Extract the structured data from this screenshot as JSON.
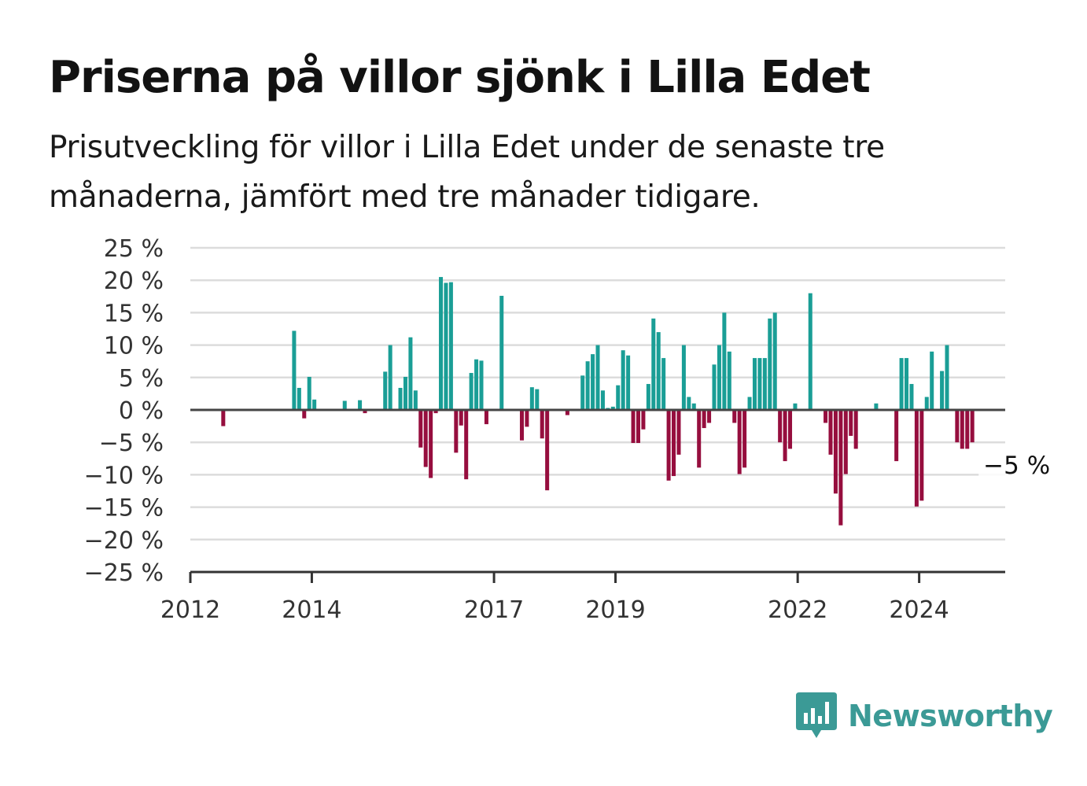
{
  "header": {
    "title": "Priserna på villor sjönk i Lilla Edet",
    "subtitle": "Prisutveckling för villor i Lilla Edet under de senaste tre månaderna, jämfört med tre månader tidigare."
  },
  "brand": {
    "name": "Newsworthy",
    "icon": "bar-chart-speech-bubble-icon",
    "color": "#3b9a96"
  },
  "colors": {
    "positive": "#1a9e96",
    "negative": "#960e3e",
    "grid": "#dcdcdc",
    "axis": "#333333"
  },
  "chart_data": {
    "type": "bar",
    "title": "Priserna på villor sjönk i Lilla Edet",
    "subtitle": "Prisutveckling för villor i Lilla Edet under de senaste tre månaderna, jämfört med tre månader tidigare.",
    "ylim": [
      -25,
      25
    ],
    "y_ticks": [
      25,
      20,
      15,
      10,
      5,
      0,
      -5,
      -10,
      -15,
      -20,
      -25
    ],
    "y_tick_labels": [
      "25 %",
      "20 %",
      "15 %",
      "10 %",
      "5 %",
      "0 %",
      "−5 %",
      "−10 %",
      "−15 %",
      "−20 %",
      "−25 %"
    ],
    "xlim": [
      "2012-01",
      "2025-06"
    ],
    "x_ticks": [
      "2012-01",
      "2014-01",
      "2017-01",
      "2019-01",
      "2022-01",
      "2024-01"
    ],
    "x_tick_labels": [
      "2012",
      "2014",
      "2017",
      "2019",
      "2022",
      "2024"
    ],
    "grid": true,
    "annotation": {
      "label": "−5 %",
      "date": "2024-11",
      "value": -5
    },
    "series": [
      {
        "x": "2012-07",
        "value": -2.5
      },
      {
        "x": "2013-09",
        "value": 12.2
      },
      {
        "x": "2013-10",
        "value": 3.4
      },
      {
        "x": "2013-11",
        "value": -1.3
      },
      {
        "x": "2013-12",
        "value": 5.1
      },
      {
        "x": "2014-01",
        "value": 1.6
      },
      {
        "x": "2014-07",
        "value": 1.4
      },
      {
        "x": "2014-10",
        "value": 1.5
      },
      {
        "x": "2014-11",
        "value": -0.5
      },
      {
        "x": "2015-03",
        "value": 5.9
      },
      {
        "x": "2015-04",
        "value": 10.0
      },
      {
        "x": "2015-06",
        "value": 3.4
      },
      {
        "x": "2015-07",
        "value": 5.1
      },
      {
        "x": "2015-08",
        "value": 11.2
      },
      {
        "x": "2015-09",
        "value": 3.0
      },
      {
        "x": "2015-10",
        "value": -5.8
      },
      {
        "x": "2015-11",
        "value": -8.8
      },
      {
        "x": "2015-12",
        "value": -10.5
      },
      {
        "x": "2016-01",
        "value": -0.5
      },
      {
        "x": "2016-02",
        "value": 20.5
      },
      {
        "x": "2016-03",
        "value": 19.6
      },
      {
        "x": "2016-04",
        "value": 19.7
      },
      {
        "x": "2016-05",
        "value": -6.6
      },
      {
        "x": "2016-06",
        "value": -2.4
      },
      {
        "x": "2016-07",
        "value": -10.7
      },
      {
        "x": "2016-08",
        "value": 5.7
      },
      {
        "x": "2016-09",
        "value": 7.8
      },
      {
        "x": "2016-10",
        "value": 7.6
      },
      {
        "x": "2016-11",
        "value": -2.2
      },
      {
        "x": "2017-02",
        "value": 17.6
      },
      {
        "x": "2017-06",
        "value": -4.7
      },
      {
        "x": "2017-07",
        "value": -2.6
      },
      {
        "x": "2017-08",
        "value": 3.5
      },
      {
        "x": "2017-09",
        "value": 3.2
      },
      {
        "x": "2017-10",
        "value": -4.4
      },
      {
        "x": "2017-11",
        "value": -12.4
      },
      {
        "x": "2018-03",
        "value": -0.8
      },
      {
        "x": "2018-06",
        "value": 5.3
      },
      {
        "x": "2018-07",
        "value": 7.5
      },
      {
        "x": "2018-08",
        "value": 8.6
      },
      {
        "x": "2018-09",
        "value": 10.0
      },
      {
        "x": "2018-10",
        "value": 3.0
      },
      {
        "x": "2018-11",
        "value": 0.3
      },
      {
        "x": "2018-12",
        "value": 0.5
      },
      {
        "x": "2019-01",
        "value": 3.8
      },
      {
        "x": "2019-02",
        "value": 9.2
      },
      {
        "x": "2019-03",
        "value": 8.4
      },
      {
        "x": "2019-04",
        "value": -5.1
      },
      {
        "x": "2019-05",
        "value": -5.1
      },
      {
        "x": "2019-06",
        "value": -3.0
      },
      {
        "x": "2019-07",
        "value": 4.0
      },
      {
        "x": "2019-08",
        "value": 14.1
      },
      {
        "x": "2019-09",
        "value": 12.0
      },
      {
        "x": "2019-10",
        "value": 8.0
      },
      {
        "x": "2019-11",
        "value": -10.9
      },
      {
        "x": "2019-12",
        "value": -10.2
      },
      {
        "x": "2020-01",
        "value": -6.9
      },
      {
        "x": "2020-02",
        "value": 10.0
      },
      {
        "x": "2020-03",
        "value": 2.0
      },
      {
        "x": "2020-04",
        "value": 1.0
      },
      {
        "x": "2020-05",
        "value": -8.9
      },
      {
        "x": "2020-06",
        "value": -2.8
      },
      {
        "x": "2020-07",
        "value": -2.0
      },
      {
        "x": "2020-08",
        "value": 7.0
      },
      {
        "x": "2020-09",
        "value": 10.0
      },
      {
        "x": "2020-10",
        "value": 15.0
      },
      {
        "x": "2020-11",
        "value": 9.0
      },
      {
        "x": "2020-12",
        "value": -2.0
      },
      {
        "x": "2021-01",
        "value": -9.9
      },
      {
        "x": "2021-02",
        "value": -8.9
      },
      {
        "x": "2021-03",
        "value": 2.0
      },
      {
        "x": "2021-04",
        "value": 8.0
      },
      {
        "x": "2021-05",
        "value": 8.0
      },
      {
        "x": "2021-06",
        "value": 8.0
      },
      {
        "x": "2021-07",
        "value": 14.1
      },
      {
        "x": "2021-08",
        "value": 15.0
      },
      {
        "x": "2021-09",
        "value": -5.0
      },
      {
        "x": "2021-10",
        "value": -7.9
      },
      {
        "x": "2021-11",
        "value": -6.0
      },
      {
        "x": "2021-12",
        "value": 1.0
      },
      {
        "x": "2022-03",
        "value": 18.0
      },
      {
        "x": "2022-06",
        "value": -2.0
      },
      {
        "x": "2022-07",
        "value": -6.9
      },
      {
        "x": "2022-08",
        "value": -12.9
      },
      {
        "x": "2022-09",
        "value": -17.8
      },
      {
        "x": "2022-10",
        "value": -9.9
      },
      {
        "x": "2022-11",
        "value": -4.0
      },
      {
        "x": "2022-12",
        "value": -6.0
      },
      {
        "x": "2023-04",
        "value": 1.0
      },
      {
        "x": "2023-08",
        "value": -7.9
      },
      {
        "x": "2023-09",
        "value": 8.0
      },
      {
        "x": "2023-10",
        "value": 8.0
      },
      {
        "x": "2023-11",
        "value": 4.0
      },
      {
        "x": "2023-12",
        "value": -14.9
      },
      {
        "x": "2024-01",
        "value": -14.0
      },
      {
        "x": "2024-02",
        "value": 2.0
      },
      {
        "x": "2024-03",
        "value": 9.0
      },
      {
        "x": "2024-05",
        "value": 6.0
      },
      {
        "x": "2024-06",
        "value": 10.0
      },
      {
        "x": "2024-08",
        "value": -5.0
      },
      {
        "x": "2024-09",
        "value": -6.0
      },
      {
        "x": "2024-10",
        "value": -6.0
      },
      {
        "x": "2024-11",
        "value": -5.0
      }
    ]
  }
}
